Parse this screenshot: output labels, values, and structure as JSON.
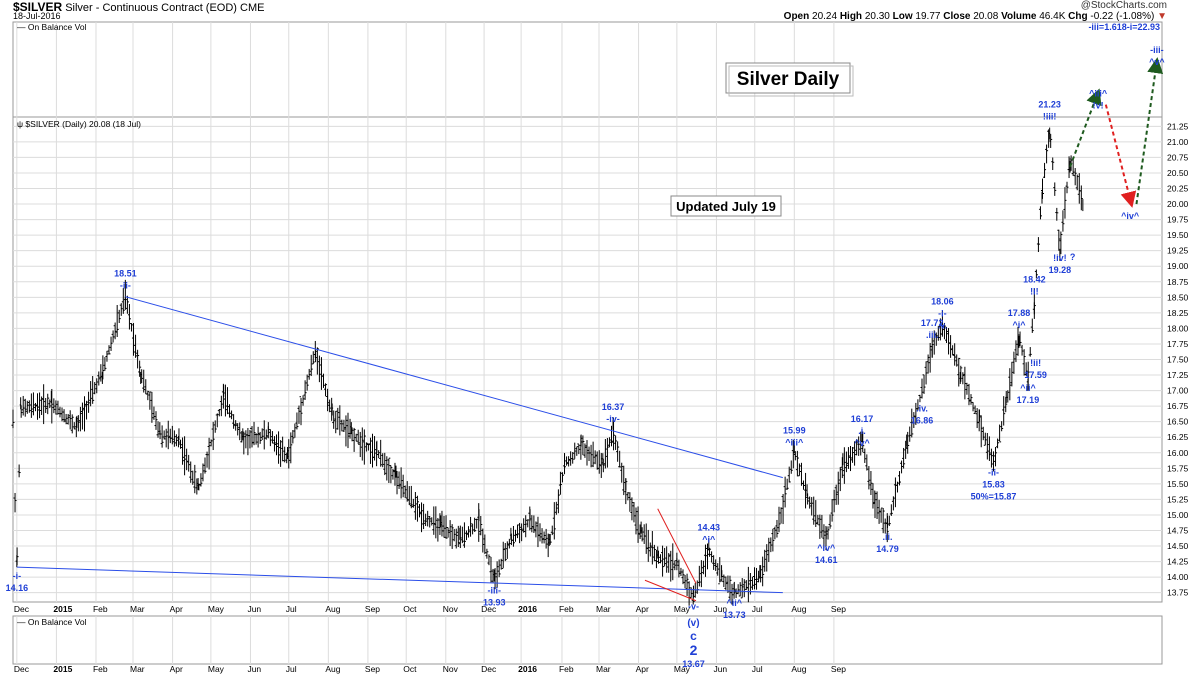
{
  "header": {
    "ticker": "$SILVER",
    "description": "Silver - Continuous Contract (EOD) CME",
    "date": "18-Jul-2016",
    "credit": "@StockCharts.com",
    "open_label": "Open",
    "open": "20.24",
    "high_label": "High",
    "high": "20.30",
    "low_label": "Low",
    "low": "19.77",
    "close_label": "Close",
    "close": "20.08",
    "volume_label": "Volume",
    "volume": "46.4K",
    "chg_label": "Chg",
    "chg": "-0.22 (-1.08%)"
  },
  "colors": {
    "price": "#000000",
    "annotation": "#1f3fd6",
    "trendline": "#2b4ee8",
    "red": "#e02020",
    "green": "#1e5a1e",
    "grid": "#dcdcdc"
  },
  "chart_data": {
    "type": "ohlc",
    "title": "Silver Daily",
    "subtitle": "Updated July 19",
    "price_label": "$SILVER (Daily) 20.08 (18 Jul)",
    "top_panel_label": "On Balance Vol",
    "bottom_panel_label": "On Balance Vol",
    "y_ticks": [
      "13.75",
      "14.00",
      "14.25",
      "14.50",
      "14.75",
      "15.00",
      "15.25",
      "15.50",
      "15.75",
      "16.00",
      "16.25",
      "16.50",
      "16.75",
      "17.00",
      "17.25",
      "17.50",
      "17.75",
      "18.00",
      "18.25",
      "18.50",
      "18.75",
      "19.00",
      "19.25",
      "19.50",
      "19.75",
      "20.00",
      "20.25",
      "20.50",
      "20.75",
      "21.00",
      "21.25"
    ],
    "ylim": [
      13.6,
      21.4
    ],
    "x_ticks": [
      "Dec",
      "2015",
      "Feb",
      "Mar",
      "Apr",
      "May",
      "Jun",
      "Jul",
      "Aug",
      "Sep",
      "Oct",
      "Nov",
      "Dec",
      "2016",
      "Feb",
      "Mar",
      "Apr",
      "May",
      "Jun",
      "Jul",
      "Aug",
      "Sep"
    ],
    "anchor_points": [
      {
        "x": 0,
        "y": 16.5
      },
      {
        "x": 3,
        "y": 14.16
      },
      {
        "x": 6,
        "y": 16.7
      },
      {
        "x": 30,
        "y": 16.8
      },
      {
        "x": 50,
        "y": 16.4
      },
      {
        "x": 70,
        "y": 17.3
      },
      {
        "x": 88,
        "y": 18.51
      },
      {
        "x": 100,
        "y": 17.3
      },
      {
        "x": 115,
        "y": 16.3
      },
      {
        "x": 130,
        "y": 16.2
      },
      {
        "x": 145,
        "y": 15.4
      },
      {
        "x": 165,
        "y": 16.9
      },
      {
        "x": 180,
        "y": 16.2
      },
      {
        "x": 200,
        "y": 16.3
      },
      {
        "x": 215,
        "y": 15.9
      },
      {
        "x": 237,
        "y": 17.65
      },
      {
        "x": 250,
        "y": 16.6
      },
      {
        "x": 265,
        "y": 16.3
      },
      {
        "x": 285,
        "y": 16.0
      },
      {
        "x": 300,
        "y": 15.6
      },
      {
        "x": 320,
        "y": 15.0
      },
      {
        "x": 335,
        "y": 14.8
      },
      {
        "x": 350,
        "y": 14.6
      },
      {
        "x": 365,
        "y": 14.9
      },
      {
        "x": 377,
        "y": 13.93
      },
      {
        "x": 390,
        "y": 14.6
      },
      {
        "x": 405,
        "y": 14.9
      },
      {
        "x": 420,
        "y": 14.5
      },
      {
        "x": 432,
        "y": 15.8
      },
      {
        "x": 445,
        "y": 16.1
      },
      {
        "x": 462,
        "y": 15.8
      },
      {
        "x": 470,
        "y": 16.37
      },
      {
        "x": 480,
        "y": 15.4
      },
      {
        "x": 492,
        "y": 14.7
      },
      {
        "x": 505,
        "y": 14.3
      },
      {
        "x": 520,
        "y": 14.2
      },
      {
        "x": 533,
        "y": 13.67
      },
      {
        "x": 545,
        "y": 14.43
      },
      {
        "x": 555,
        "y": 14.0
      },
      {
        "x": 565,
        "y": 13.73
      },
      {
        "x": 585,
        "y": 14.0
      },
      {
        "x": 600,
        "y": 14.9
      },
      {
        "x": 612,
        "y": 15.99
      },
      {
        "x": 622,
        "y": 15.3
      },
      {
        "x": 637,
        "y": 14.61
      },
      {
        "x": 650,
        "y": 15.8
      },
      {
        "x": 665,
        "y": 16.17
      },
      {
        "x": 675,
        "y": 15.2
      },
      {
        "x": 685,
        "y": 14.79
      },
      {
        "x": 700,
        "y": 16.1
      },
      {
        "x": 712,
        "y": 17.0
      },
      {
        "x": 720,
        "y": 17.72
      },
      {
        "x": 728,
        "y": 18.06
      },
      {
        "x": 742,
        "y": 17.3
      },
      {
        "x": 757,
        "y": 16.5
      },
      {
        "x": 768,
        "y": 15.83
      },
      {
        "x": 778,
        "y": 16.8
      },
      {
        "x": 788,
        "y": 17.88
      },
      {
        "x": 795,
        "y": 17.19
      },
      {
        "x": 800,
        "y": 18.42
      },
      {
        "x": 806,
        "y": 20.2
      },
      {
        "x": 812,
        "y": 21.23
      },
      {
        "x": 820,
        "y": 19.28
      },
      {
        "x": 828,
        "y": 20.7
      },
      {
        "x": 838,
        "y": 20.08
      }
    ],
    "trendlines": [
      {
        "name": "upper",
        "from": {
          "x": 88,
          "y": 18.51
        },
        "to": {
          "x": 603,
          "y": 15.6
        }
      },
      {
        "name": "lower",
        "from": {
          "x": 3,
          "y": 14.16
        },
        "to": {
          "x": 603,
          "y": 13.75
        }
      }
    ],
    "annotations": [
      {
        "label": "-i-",
        "value": "14.16",
        "x": 3,
        "y": 14.16,
        "pos": "below"
      },
      {
        "label": "-ii-",
        "value": "18.51",
        "x": 88,
        "y": 18.51,
        "pos": "above"
      },
      {
        "label": "-iii-",
        "value": "13.93",
        "x": 377,
        "y": 13.93,
        "pos": "below"
      },
      {
        "label": "-iv-",
        "value": "16.37",
        "x": 470,
        "y": 16.37,
        "pos": "above"
      },
      {
        "label": "^i^",
        "value": "14.43",
        "x": 545,
        "y": 14.43,
        "pos": "above"
      },
      {
        "label": "-v-",
        "value": "",
        "x": 533,
        "y": 13.67,
        "pos": "below"
      },
      {
        "label": "^ii^",
        "value": "13.73",
        "x": 565,
        "y": 13.73,
        "pos": "below"
      },
      {
        "label": "^iii^",
        "value": "15.99",
        "x": 612,
        "y": 15.99,
        "pos": "above"
      },
      {
        "label": "^iv^",
        "value": "14.61",
        "x": 637,
        "y": 14.61,
        "pos": "below"
      },
      {
        "label": ".i.",
        "value": "16.17",
        "x": 665,
        "y": 16.17,
        "pos": "above"
      },
      {
        "label": "^v^",
        "value": "",
        "x": 665,
        "y": 16.17,
        "pos": "above2"
      },
      {
        "label": ".ii.",
        "value": "14.79",
        "x": 685,
        "y": 14.79,
        "pos": "below"
      },
      {
        "label": ".iii.",
        "value": "17.72",
        "x": 720,
        "y": 17.72,
        "pos": "above"
      },
      {
        "label": ".iv.",
        "value": "16.86",
        "x": 712,
        "y": 16.86,
        "pos": "below"
      },
      {
        "label": "-i-",
        "value": "18.06",
        "x": 728,
        "y": 18.06,
        "pos": "above"
      },
      {
        "label": ".v.",
        "value": "",
        "x": 728,
        "y": 18.06,
        "pos": "above2"
      },
      {
        "label": "-ii-",
        "value": "15.83",
        "x": 768,
        "y": 15.83,
        "pos": "below"
      },
      {
        "label": "50%=15.87",
        "value": "",
        "x": 768,
        "y": 15.83,
        "pos": "below2"
      },
      {
        "label": "^i^",
        "value": "17.88",
        "x": 788,
        "y": 17.88,
        "pos": "above"
      },
      {
        "label": "^ii^",
        "value": "17.19",
        "x": 795,
        "y": 17.19,
        "pos": "below"
      },
      {
        "label": "!i!",
        "value": "18.42",
        "x": 800,
        "y": 18.42,
        "pos": "above"
      },
      {
        "label": "!ii!",
        "value": "17.59",
        "x": 801,
        "y": 17.59,
        "pos": "below"
      },
      {
        "label": "!iii!",
        "value": "21.23",
        "x": 812,
        "y": 21.23,
        "pos": "above"
      },
      {
        "label": "!iv!",
        "value": "19.28",
        "x": 820,
        "y": 19.28,
        "pos": "below"
      },
      {
        "label": "?",
        "value": "",
        "x": 830,
        "y": 19.1,
        "pos": "point"
      },
      {
        "label": "^iv^",
        "value": "",
        "x": 875,
        "y": 19.95,
        "pos": "below"
      },
      {
        "label": "^iii^",
        "value": "",
        "x": 850,
        "y": 21.6,
        "pos": "above"
      },
      {
        "label": "!v!",
        "value": "",
        "x": 850,
        "y": 21.6,
        "pos": "above2"
      },
      {
        "label": "-iii-",
        "value": "",
        "x": 896,
        "y": 22.3,
        "pos": "above"
      },
      {
        "label": "^v^",
        "value": "",
        "x": 896,
        "y": 22.3,
        "pos": "above2"
      }
    ],
    "corner_note": "-iii=1.618-i=22.93",
    "wave_labels": [
      "(v)",
      "c",
      "2",
      "13.67"
    ],
    "forecast_path": [
      {
        "x": 828,
        "y": 20.6,
        "color": "green"
      },
      {
        "x": 850,
        "y": 21.8
      },
      {
        "x": 856,
        "y": 21.6,
        "color": "red"
      },
      {
        "x": 876,
        "y": 20.0
      },
      {
        "x": 880,
        "y": 20.0,
        "color": "green"
      },
      {
        "x": 896,
        "y": 22.3
      }
    ]
  }
}
